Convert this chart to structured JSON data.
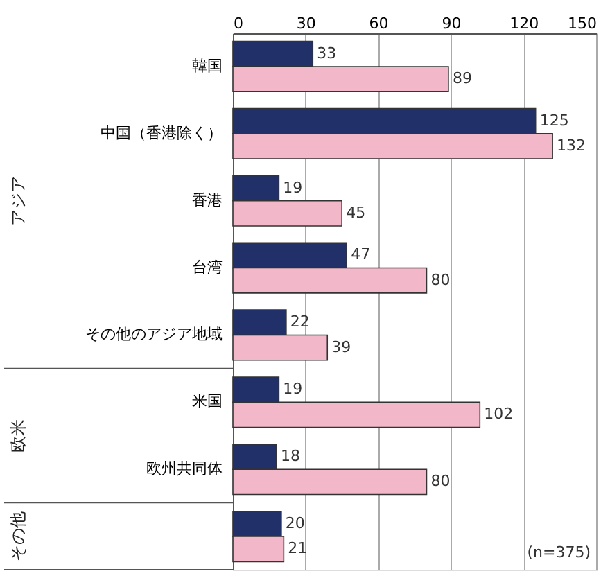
{
  "chart_data": {
    "type": "bar",
    "orientation": "horizontal",
    "categories": [
      "韓国",
      "中国（香港除く）",
      "香港",
      "台湾",
      "その他のアジア地域",
      "米国",
      "欧州共同体",
      null
    ],
    "series": [
      {
        "color": "#22306a",
        "values": [
          33,
          125,
          19,
          47,
          22,
          19,
          18,
          20
        ]
      },
      {
        "color": "#f2b8ca",
        "values": [
          89,
          132,
          45,
          80,
          39,
          102,
          80,
          21
        ]
      }
    ],
    "xlim": [
      0,
      150
    ],
    "xticks": [
      0,
      30,
      60,
      90,
      120,
      150
    ],
    "grid": "x",
    "data_labels": true,
    "annotations": [
      "アジア",
      "欧米",
      "その他",
      "(n=375)"
    ]
  }
}
